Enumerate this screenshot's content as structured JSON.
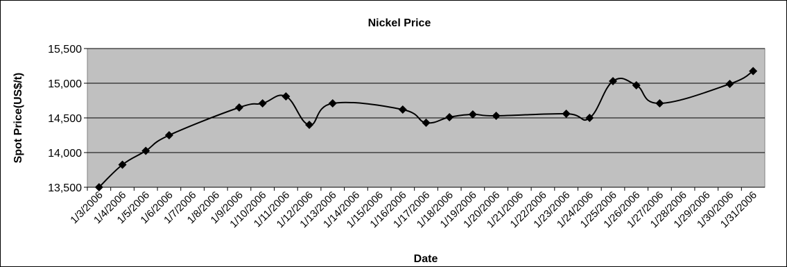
{
  "chart_data": {
    "type": "line",
    "title": "Nickel Price",
    "xlabel": "Date",
    "ylabel": "Spot Price(US$/t)",
    "ylim": [
      13500,
      15500
    ],
    "yticks": [
      "13,500",
      "14,000",
      "14,500",
      "15,000",
      "15,500"
    ],
    "ytick_values": [
      13500,
      14000,
      14500,
      15000,
      15500
    ],
    "grid": true,
    "legend": "none",
    "plot_background": "#c0c0c0",
    "line_color": "#000000",
    "marker": "diamond",
    "categories": [
      "1/3/2006",
      "1/4/2006",
      "1/5/2006",
      "1/6/2006",
      "1/7/2006",
      "1/8/2006",
      "1/9/2006",
      "1/10/2006",
      "1/11/2006",
      "1/12/2006",
      "1/13/2006",
      "1/14/2006",
      "1/15/2006",
      "1/16/2006",
      "1/17/2006",
      "1/18/2006",
      "1/19/2006",
      "1/20/2006",
      "1/21/2006",
      "1/22/2006",
      "1/23/2006",
      "1/24/2006",
      "1/25/2006",
      "1/26/2006",
      "1/27/2006",
      "1/28/2006",
      "1/29/2006",
      "1/30/2006",
      "1/31/2006"
    ],
    "series": [
      {
        "points": [
          {
            "x": "1/3/2006",
            "y": 13500
          },
          {
            "x": "1/4/2006",
            "y": 13825
          },
          {
            "x": "1/5/2006",
            "y": 14025
          },
          {
            "x": "1/6/2006",
            "y": 14250
          },
          {
            "x": "1/9/2006",
            "y": 14650
          },
          {
            "x": "1/10/2006",
            "y": 14710
          },
          {
            "x": "1/11/2006",
            "y": 14810
          },
          {
            "x": "1/12/2006",
            "y": 14400
          },
          {
            "x": "1/13/2006",
            "y": 14710
          },
          {
            "x": "1/16/2006",
            "y": 14620
          },
          {
            "x": "1/17/2006",
            "y": 14430
          },
          {
            "x": "1/18/2006",
            "y": 14510
          },
          {
            "x": "1/19/2006",
            "y": 14550
          },
          {
            "x": "1/20/2006",
            "y": 14530
          },
          {
            "x": "1/23/2006",
            "y": 14560
          },
          {
            "x": "1/24/2006",
            "y": 14500
          },
          {
            "x": "1/25/2006",
            "y": 15030
          },
          {
            "x": "1/26/2006",
            "y": 14970
          },
          {
            "x": "1/27/2006",
            "y": 14710
          },
          {
            "x": "1/30/2006",
            "y": 14990
          },
          {
            "x": "1/31/2006",
            "y": 15175
          }
        ]
      }
    ]
  }
}
